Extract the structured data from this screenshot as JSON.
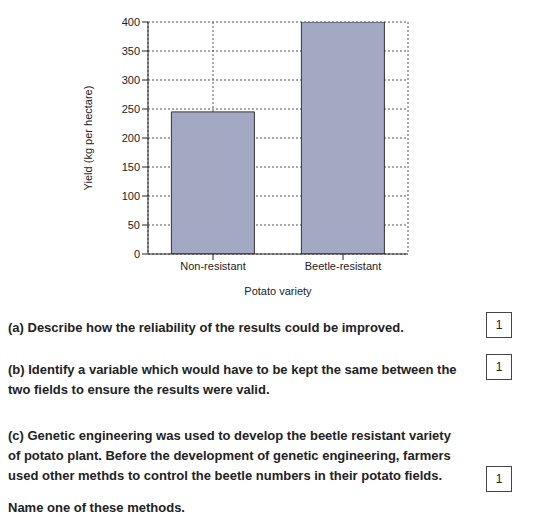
{
  "chart_data": {
    "type": "bar",
    "categories": [
      "Non-resistant",
      "Beetle-resistant"
    ],
    "values": [
      245,
      400
    ],
    "color": "#a3a9c2",
    "ylim": [
      0,
      400
    ],
    "yticks": [
      0,
      50,
      100,
      150,
      200,
      250,
      300,
      350,
      400
    ],
    "grid": true,
    "x_label": "Potato variety",
    "y_label": "Yield (kg per hectare)"
  },
  "questions": [
    {
      "label": "(a)",
      "text": [
        "Describe how the reliability of the results could be improved."
      ],
      "marks": 1
    },
    {
      "label": "(b)",
      "text": [
        "Identify a variable which would have to be kept the same between the two fields to ensure the results were valid."
      ],
      "marks": 1
    },
    {
      "label": "(c)",
      "text": [
        "Genetic engineering was used to develop the beetle resistant variety of potato plant. Before the development of genetic engineering, farmers used other methds to control the beetle numbers in their potato fields.",
        "Name one of these methods."
      ],
      "marks": 1
    }
  ]
}
